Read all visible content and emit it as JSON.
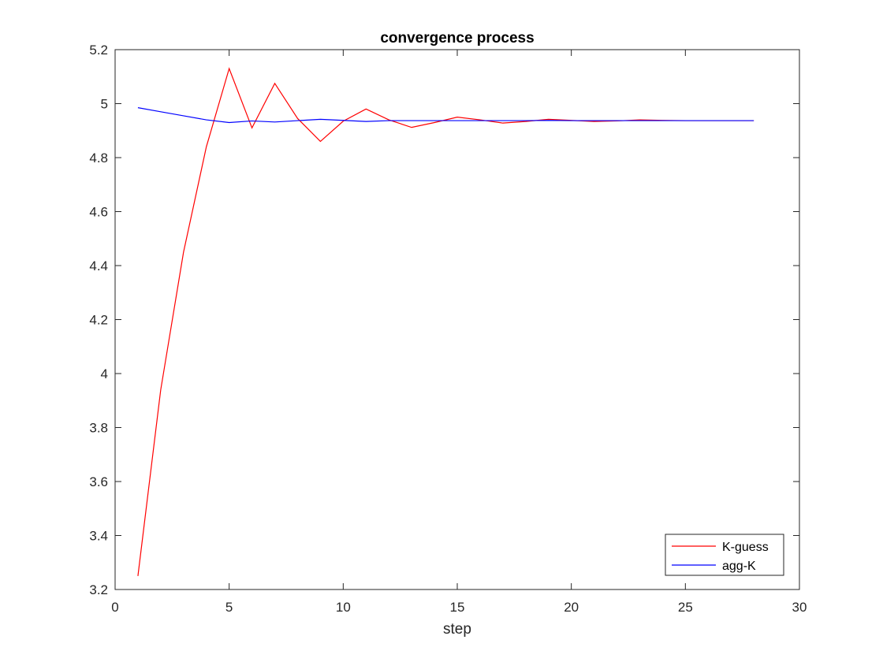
{
  "chart_data": {
    "type": "line",
    "title": "convergence process",
    "xlabel": "step",
    "ylabel": "",
    "xlim": [
      0,
      30
    ],
    "ylim": [
      3.2,
      5.2
    ],
    "xticks": [
      0,
      5,
      10,
      15,
      20,
      25,
      30
    ],
    "yticks": [
      3.2,
      3.4,
      3.6,
      3.8,
      4,
      4.2,
      4.4,
      4.6,
      4.8,
      5,
      5.2
    ],
    "grid": false,
    "legend": "bottom-right",
    "x": [
      1,
      2,
      3,
      4,
      5,
      6,
      7,
      8,
      9,
      10,
      11,
      12,
      13,
      14,
      15,
      16,
      17,
      18,
      19,
      20,
      21,
      22,
      23,
      24,
      25,
      26,
      27,
      28
    ],
    "series": [
      {
        "name": "K-guess",
        "color": "#ff0000",
        "values": [
          3.25,
          3.94,
          4.45,
          4.84,
          5.13,
          4.91,
          5.075,
          4.945,
          4.86,
          4.935,
          4.98,
          4.94,
          4.912,
          4.93,
          4.95,
          4.94,
          4.928,
          4.934,
          4.942,
          4.938,
          4.934,
          4.936,
          4.94,
          4.938,
          4.937,
          4.937,
          4.937,
          4.937
        ]
      },
      {
        "name": "agg-K",
        "color": "#0000ff",
        "values": [
          4.985,
          4.97,
          4.955,
          4.94,
          4.93,
          4.936,
          4.932,
          4.937,
          4.942,
          4.938,
          4.934,
          4.937,
          4.937,
          4.937,
          4.937,
          4.937,
          4.937,
          4.937,
          4.938,
          4.937,
          4.937,
          4.937,
          4.937,
          4.937,
          4.937,
          4.937,
          4.937,
          4.937
        ]
      }
    ]
  }
}
